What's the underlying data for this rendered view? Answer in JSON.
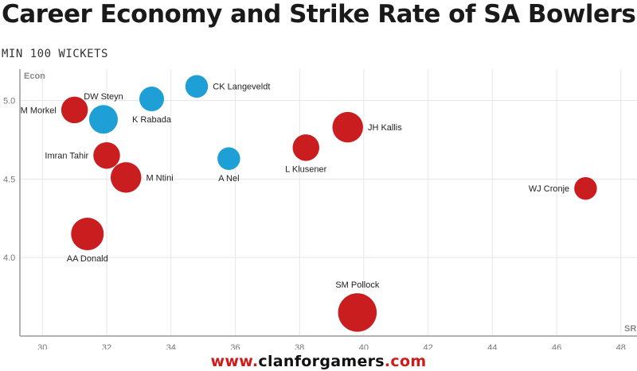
{
  "title": "Career Economy and Strike Rate of SA Bowlers",
  "subtitle": "MIN 100 WICKETS",
  "footer": {
    "prefix": "www.",
    "brand": "clanforgamers",
    "suffix": ".com"
  },
  "colors": {
    "red": "#c91d1f",
    "blue": "#1e9fd6",
    "footer_red": "#d11a1a",
    "footer_dark": "#111111",
    "grid": "#e6e6e6",
    "axis": "#999999"
  },
  "chart_data": {
    "type": "scatter",
    "title": "Career Economy and Strike Rate of SA Bowlers",
    "subtitle": "MIN 100 WICKETS",
    "xlabel": "SR",
    "ylabel": "Econ",
    "xlim": [
      29.3,
      48.5
    ],
    "ylim": [
      3.5,
      5.2
    ],
    "x_ticks": [
      30,
      32,
      34,
      36,
      38,
      40,
      42,
      44,
      46,
      48
    ],
    "y_ticks": [
      4.0,
      4.5,
      5.0
    ],
    "x_tick_labels": [
      "30",
      "32",
      "34",
      "36",
      "38",
      "40",
      "42",
      "44",
      "46",
      "48"
    ],
    "y_tick_labels": [
      "4.0",
      "4.5",
      "5.0"
    ],
    "grid": true,
    "points": [
      {
        "name": "M Morkel",
        "x": 31.0,
        "y": 4.94,
        "size": 7,
        "color": "red",
        "label_side": "left"
      },
      {
        "name": "DW Steyn",
        "x": 31.9,
        "y": 4.88,
        "size": 8,
        "color": "blue",
        "label_side": "above"
      },
      {
        "name": "K Rabada",
        "x": 33.4,
        "y": 5.01,
        "size": 6,
        "color": "blue",
        "label_side": "below"
      },
      {
        "name": "CK Langeveldt",
        "x": 34.8,
        "y": 5.09,
        "size": 5,
        "color": "blue",
        "label_side": "right"
      },
      {
        "name": "Imran Tahir",
        "x": 32.0,
        "y": 4.65,
        "size": 7,
        "color": "red",
        "label_side": "left"
      },
      {
        "name": "M Ntini",
        "x": 32.6,
        "y": 4.51,
        "size": 9,
        "color": "red",
        "label_side": "right"
      },
      {
        "name": "A Nel",
        "x": 35.8,
        "y": 4.63,
        "size": 5,
        "color": "blue",
        "label_side": "below"
      },
      {
        "name": "L Klusener",
        "x": 38.2,
        "y": 4.7,
        "size": 7,
        "color": "red",
        "label_side": "below"
      },
      {
        "name": "JH Kallis",
        "x": 39.5,
        "y": 4.83,
        "size": 9,
        "color": "red",
        "label_side": "right"
      },
      {
        "name": "WJ Cronje",
        "x": 46.9,
        "y": 4.44,
        "size": 5,
        "color": "red",
        "label_side": "left"
      },
      {
        "name": "AA Donald",
        "x": 31.4,
        "y": 4.15,
        "size": 10,
        "color": "red",
        "label_side": "below"
      },
      {
        "name": "SM Pollock",
        "x": 39.8,
        "y": 3.65,
        "size": 13,
        "color": "red",
        "label_side": "above"
      }
    ]
  }
}
